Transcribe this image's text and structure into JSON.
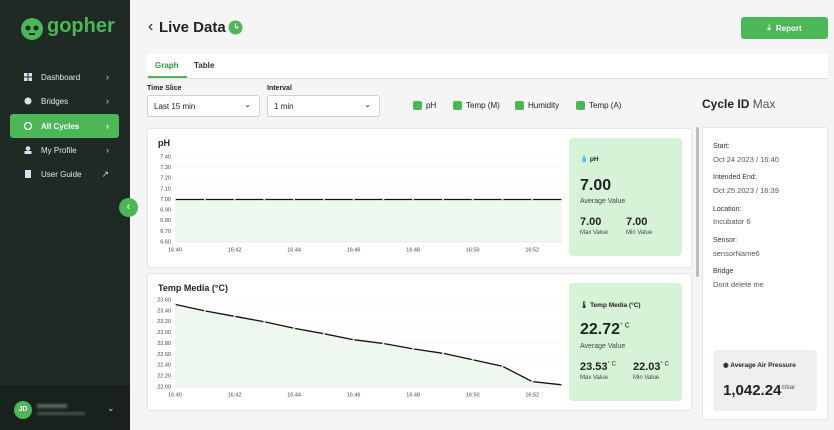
{
  "sidebar": {
    "logo": "gopher",
    "menu": [
      "Dashboard",
      "Bridges",
      "All Cycles",
      "My Profile",
      "User Guide"
    ],
    "user_initials": "JD"
  },
  "header": {
    "title": "Live Data",
    "report_button": "Report"
  },
  "tabs": [
    "Graph",
    "Table"
  ],
  "filters": {
    "time_slice_label": "Time Slice",
    "time_slice": "Last 15 min",
    "interval_label": "Interval",
    "interval": "1 min",
    "checkboxes": [
      "pH",
      "Temp (M)",
      "Humidity",
      "Temp (A)"
    ]
  },
  "cycle": {
    "label": "Cycle ID",
    "id": "Max",
    "fields": [
      {
        "label": "Start:",
        "value": "Oct 24 2023 / 16:40"
      },
      {
        "label": "Intended End:",
        "value": "Oct 25 2023 / 16:39"
      },
      {
        "label": "Location:",
        "value": "Incubator 6"
      },
      {
        "label": "Sensor:",
        "value": "sensorName6"
      },
      {
        "label": "Bridge",
        "value": "Dont delete me"
      }
    ],
    "pressure": {
      "label": "Average Air Pressure",
      "value": "1,042.24",
      "unit": "mbar"
    }
  },
  "charts": [
    {
      "type": "line",
      "title": "pH",
      "color": "#111111",
      "grid": true,
      "x": [
        "16:40",
        null,
        "16:42",
        null,
        "16:44",
        null,
        "16:46",
        null,
        "16:48",
        null,
        "16:50",
        null,
        "16:52",
        null
      ],
      "values": [
        7,
        7,
        7,
        7,
        7,
        7,
        7,
        7,
        7,
        7,
        7,
        7,
        7,
        7
      ],
      "ylim": [
        6.6,
        7.4
      ],
      "yticks": [
        {
          "value": 7.4,
          "label": "7.40"
        },
        {
          "value": 7.3,
          "label": "7.30"
        },
        {
          "value": 7.2,
          "label": "7.20"
        },
        {
          "value": 7.1,
          "label": "7.10"
        },
        {
          "value": 7,
          "label": "7.00"
        },
        {
          "value": 6.9,
          "label": "6.90"
        },
        {
          "value": 6.8,
          "label": "6.80"
        },
        {
          "value": 6.7,
          "label": "6.70"
        },
        {
          "value": 6.6,
          "label": "6.60"
        }
      ],
      "stats": {
        "name": "pH",
        "average": "7.00",
        "average_label": "Average Value",
        "max": "7.00",
        "max_label": "Max Value",
        "min": "7.00",
        "min_label": "Min Value"
      }
    },
    {
      "type": "line",
      "title": "Temp Media (°C)",
      "color": "#111111",
      "grid": true,
      "x": [
        "16:40",
        null,
        "16:42",
        null,
        "16:44",
        null,
        "16:46",
        null,
        "16:48",
        null,
        "16:50",
        null,
        "16:52",
        null
      ],
      "values": [
        23.52,
        23.4,
        23.3,
        23.2,
        23.08,
        22.98,
        22.87,
        22.8,
        22.7,
        22.62,
        22.5,
        22.38,
        22.1,
        22.04
      ],
      "ylim": [
        22,
        23.6
      ],
      "yticks": [
        {
          "value": 23.6,
          "label": "23.60"
        },
        {
          "value": 23.4,
          "label": "23.40"
        },
        {
          "value": 23.2,
          "label": "23.20"
        },
        {
          "value": 23,
          "label": "23.00"
        },
        {
          "value": 22.8,
          "label": "22.80"
        },
        {
          "value": 22.6,
          "label": "22.60"
        },
        {
          "value": 22.4,
          "label": "22.40"
        },
        {
          "value": 22.2,
          "label": "22.20"
        },
        {
          "value": 22,
          "label": "22.00"
        }
      ],
      "stats": {
        "name": "Temp Media (°C)",
        "average": "22.72",
        "average_label": "Average Value",
        "max": "23.53",
        "max_label": "Max Value",
        "min": "22.03",
        "min_label": "Min Value",
        "unit": "° C"
      }
    }
  ]
}
